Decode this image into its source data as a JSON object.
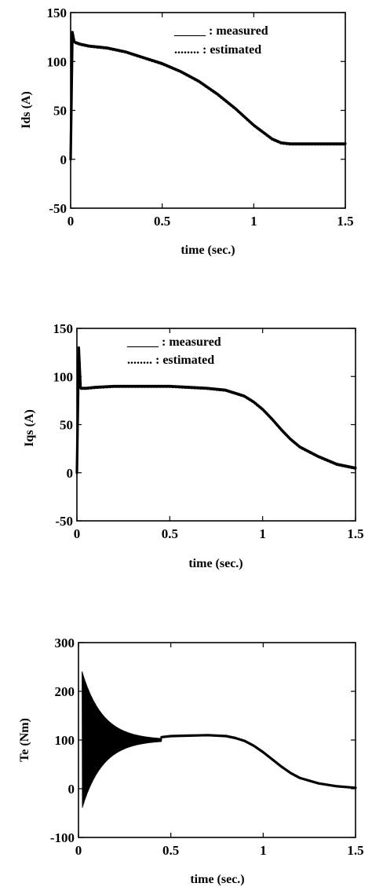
{
  "chart_data": [
    {
      "type": "line",
      "xlabel": "time (sec.)",
      "ylabel": "Ids (A)",
      "xlim": [
        0,
        1.5
      ],
      "ylim": [
        -50,
        150
      ],
      "xticks": [
        "0",
        "0.5",
        "1",
        "1.5"
      ],
      "yticks": [
        "-50",
        "0",
        "50",
        "100",
        "150"
      ],
      "xtick_values": [
        0,
        0.5,
        1,
        1.5
      ],
      "ytick_values": [
        -50,
        0,
        50,
        100,
        150
      ],
      "legend": [
        "_____ : measured",
        "........ : estimated"
      ],
      "legend_position": "top-right",
      "grid": false,
      "series": [
        {
          "style": "solid",
          "x": [
            0,
            0.01,
            0.02,
            0.05,
            0.1,
            0.2,
            0.3,
            0.4,
            0.5,
            0.6,
            0.7,
            0.8,
            0.9,
            1.0,
            1.1,
            1.15,
            1.2,
            1.25,
            1.3,
            1.4,
            1.5
          ],
          "y": [
            0,
            130,
            120,
            118,
            116,
            114,
            110,
            104,
            98,
            90,
            80,
            67,
            52,
            35,
            21,
            17,
            16,
            16,
            16,
            16,
            16
          ]
        },
        {
          "style": "dotted",
          "x": [
            0,
            0.01,
            0.02,
            0.05,
            0.1,
            0.2,
            0.3,
            0.4,
            0.5,
            0.6,
            0.7,
            0.8,
            0.9,
            1.0,
            1.1,
            1.15,
            1.2,
            1.25,
            1.3,
            1.4,
            1.5
          ],
          "y": [
            0,
            128,
            119,
            117,
            115,
            113,
            109,
            103,
            97,
            89,
            79,
            66,
            51,
            34,
            20,
            16,
            15,
            15,
            15,
            15,
            15
          ]
        }
      ]
    },
    {
      "type": "line",
      "xlabel": "time (sec.)",
      "ylabel": "Iqs (A)",
      "xlim": [
        0,
        1.5
      ],
      "ylim": [
        -50,
        150
      ],
      "xticks": [
        "0",
        "0.5",
        "1",
        "1.5"
      ],
      "yticks": [
        "-50",
        "0",
        "50",
        "100",
        "150"
      ],
      "xtick_values": [
        0,
        0.5,
        1,
        1.5
      ],
      "ytick_values": [
        -50,
        0,
        50,
        100,
        150
      ],
      "legend": [
        "_____ : measured",
        "........ : estimated"
      ],
      "legend_position": "top-center",
      "grid": false,
      "series": [
        {
          "style": "solid",
          "x": [
            0,
            0.01,
            0.02,
            0.05,
            0.1,
            0.2,
            0.3,
            0.4,
            0.5,
            0.6,
            0.7,
            0.8,
            0.9,
            0.95,
            1.0,
            1.05,
            1.1,
            1.15,
            1.2,
            1.3,
            1.4,
            1.5
          ],
          "y": [
            0,
            130,
            88,
            88,
            89,
            90,
            90,
            90,
            90,
            89,
            88,
            86,
            80,
            74,
            66,
            56,
            45,
            35,
            27,
            17,
            9,
            5
          ]
        },
        {
          "style": "dotted",
          "x": [
            0,
            0.01,
            0.02,
            0.05,
            0.1,
            0.2,
            0.3,
            0.4,
            0.5,
            0.6,
            0.7,
            0.8,
            0.9,
            0.95,
            1.0,
            1.05,
            1.1,
            1.15,
            1.2,
            1.3,
            1.4,
            1.5
          ],
          "y": [
            0,
            128,
            87,
            87,
            88,
            89,
            89,
            89,
            89,
            88,
            87,
            85,
            79,
            73,
            65,
            55,
            44,
            34,
            26,
            16,
            8,
            4
          ]
        }
      ]
    },
    {
      "type": "line",
      "xlabel": "time (sec.)",
      "ylabel": "Te (Nm)",
      "xlim": [
        0,
        1.5
      ],
      "ylim": [
        -100,
        300
      ],
      "xticks": [
        "0",
        "0.5",
        "1",
        "1.5"
      ],
      "yticks": [
        "-100",
        "0",
        "100",
        "200",
        "300"
      ],
      "xtick_values": [
        0,
        0.5,
        1,
        1.5
      ],
      "ytick_values": [
        -100,
        0,
        100,
        200,
        300
      ],
      "grid": false,
      "oscillation": {
        "t_start": 0.02,
        "t_end": 0.45,
        "center": 100,
        "initial_amplitude": 140,
        "decay": 9
      },
      "series": [
        {
          "style": "solid",
          "x": [
            0.45,
            0.5,
            0.6,
            0.7,
            0.8,
            0.85,
            0.9,
            0.95,
            1.0,
            1.05,
            1.1,
            1.15,
            1.2,
            1.3,
            1.4,
            1.5
          ],
          "y": [
            106,
            108,
            109,
            110,
            108,
            104,
            98,
            88,
            75,
            60,
            45,
            32,
            22,
            11,
            5,
            2
          ]
        }
      ]
    }
  ]
}
